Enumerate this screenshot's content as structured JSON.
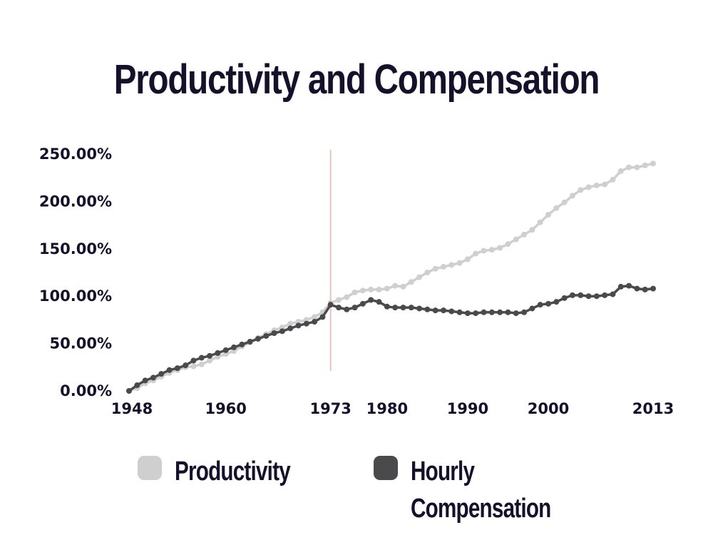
{
  "title": "Productivity and Compensation",
  "colors": {
    "productivity": "#cfcfcf",
    "compensation": "#4a4a4c",
    "marker_line": "#e7c3c0",
    "text": "#15112b"
  },
  "legend": {
    "productivity": "Productivity",
    "compensation_line1": "Hourly",
    "compensation_line2": "Compensation"
  },
  "chart_data": {
    "type": "line",
    "title": "Productivity and Compensation",
    "xlabel": "",
    "ylabel": "",
    "xlim": [
      1948,
      2013
    ],
    "ylim": [
      0,
      250
    ],
    "y_ticks": [
      "0.00%",
      "50.00%",
      "100.00%",
      "150.00%",
      "200.00%",
      "250.00%"
    ],
    "y_tick_values": [
      0,
      50,
      100,
      150,
      200,
      250
    ],
    "x_ticks": [
      "1948",
      "1960",
      "1973",
      "1980",
      "1990",
      "2000",
      "2013"
    ],
    "x_tick_values": [
      1948,
      1960,
      1973,
      1980,
      1990,
      2000,
      2013
    ],
    "vertical_marker": 1973,
    "x": [
      1948,
      1949,
      1950,
      1951,
      1952,
      1953,
      1954,
      1955,
      1956,
      1957,
      1958,
      1959,
      1960,
      1961,
      1962,
      1963,
      1964,
      1965,
      1966,
      1967,
      1968,
      1969,
      1970,
      1971,
      1972,
      1973,
      1974,
      1975,
      1976,
      1977,
      1978,
      1979,
      1980,
      1981,
      1982,
      1983,
      1984,
      1985,
      1986,
      1987,
      1988,
      1989,
      1990,
      1991,
      1992,
      1993,
      1994,
      1995,
      1996,
      1997,
      1998,
      1999,
      2000,
      2001,
      2002,
      2003,
      2004,
      2005,
      2006,
      2007,
      2008,
      2009,
      2010,
      2011,
      2012,
      2013
    ],
    "series": [
      {
        "name": "Productivity",
        "values": [
          0,
          3,
          8,
          11,
          15,
          19,
          22,
          25,
          26,
          28,
          32,
          36,
          39,
          42,
          47,
          51,
          56,
          60,
          64,
          67,
          71,
          73,
          75,
          78,
          83,
          93,
          96,
          99,
          104,
          106,
          107,
          107,
          108,
          111,
          110,
          115,
          120,
          125,
          129,
          131,
          133,
          135,
          139,
          145,
          148,
          149,
          151,
          155,
          160,
          165,
          170,
          178,
          186,
          193,
          199,
          206,
          212,
          215,
          217,
          218,
          223,
          232,
          236,
          236,
          238,
          240
        ]
      },
      {
        "name": "Hourly Compensation",
        "values": [
          0,
          6,
          11,
          14,
          18,
          22,
          24,
          27,
          32,
          35,
          37,
          40,
          43,
          46,
          49,
          52,
          55,
          58,
          61,
          63,
          66,
          69,
          71,
          73,
          78,
          91,
          88,
          86,
          88,
          92,
          96,
          94,
          89,
          88,
          88,
          88,
          87,
          86,
          85,
          85,
          84,
          83,
          82,
          82,
          83,
          83,
          83,
          83,
          82,
          83,
          87,
          91,
          92,
          94,
          98,
          101,
          101,
          100,
          100,
          101,
          102,
          110,
          111,
          108,
          107,
          108
        ]
      }
    ]
  }
}
